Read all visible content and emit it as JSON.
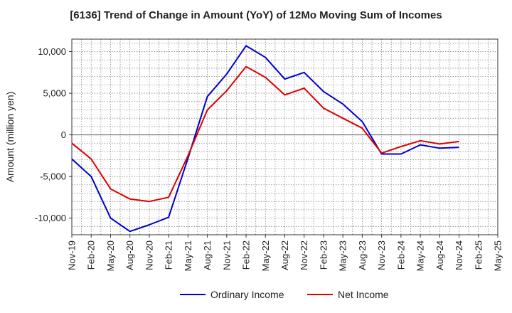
{
  "chart_data": {
    "type": "line",
    "title": "[6136]  Trend of Change in Amount (YoY) of 12Mo Moving Sum of Incomes",
    "xlabel": "",
    "ylabel": "Amount (million yen)",
    "ylim": [
      -12000,
      11500
    ],
    "yticks": [
      10000,
      5000,
      0,
      -5000,
      -10000
    ],
    "ytick_labels": [
      "10,000",
      "5,000",
      "0",
      "-5,000",
      "-10,000"
    ],
    "x": [
      "Nov-19",
      "Feb-20",
      "May-20",
      "Aug-20",
      "Nov-20",
      "Feb-21",
      "May-21",
      "Aug-21",
      "Nov-21",
      "Feb-22",
      "May-22",
      "Aug-22",
      "Nov-22",
      "Feb-23",
      "May-23",
      "Aug-23",
      "Nov-23",
      "Feb-24",
      "May-24",
      "Aug-24",
      "Nov-24",
      "Feb-25",
      "May-25"
    ],
    "grid": true,
    "legend_position": "bottom",
    "series": [
      {
        "name": "Ordinary Income",
        "color": "#0000cc",
        "values": [
          -2900,
          -5000,
          -10000,
          -11600,
          -10800,
          -9900,
          -2800,
          4600,
          7300,
          10700,
          9300,
          6700,
          7500,
          5200,
          3700,
          1600,
          -2300,
          -2300,
          -1200,
          -1600,
          -1500,
          null,
          null
        ]
      },
      {
        "name": "Net Income",
        "color": "#dd0000",
        "values": [
          -1000,
          -2900,
          -6500,
          -7700,
          -8000,
          -7500,
          -2500,
          3000,
          5300,
          8200,
          6900,
          4800,
          5600,
          3200,
          2000,
          800,
          -2200,
          -1400,
          -700,
          -1100,
          -800,
          null,
          null
        ]
      }
    ]
  }
}
